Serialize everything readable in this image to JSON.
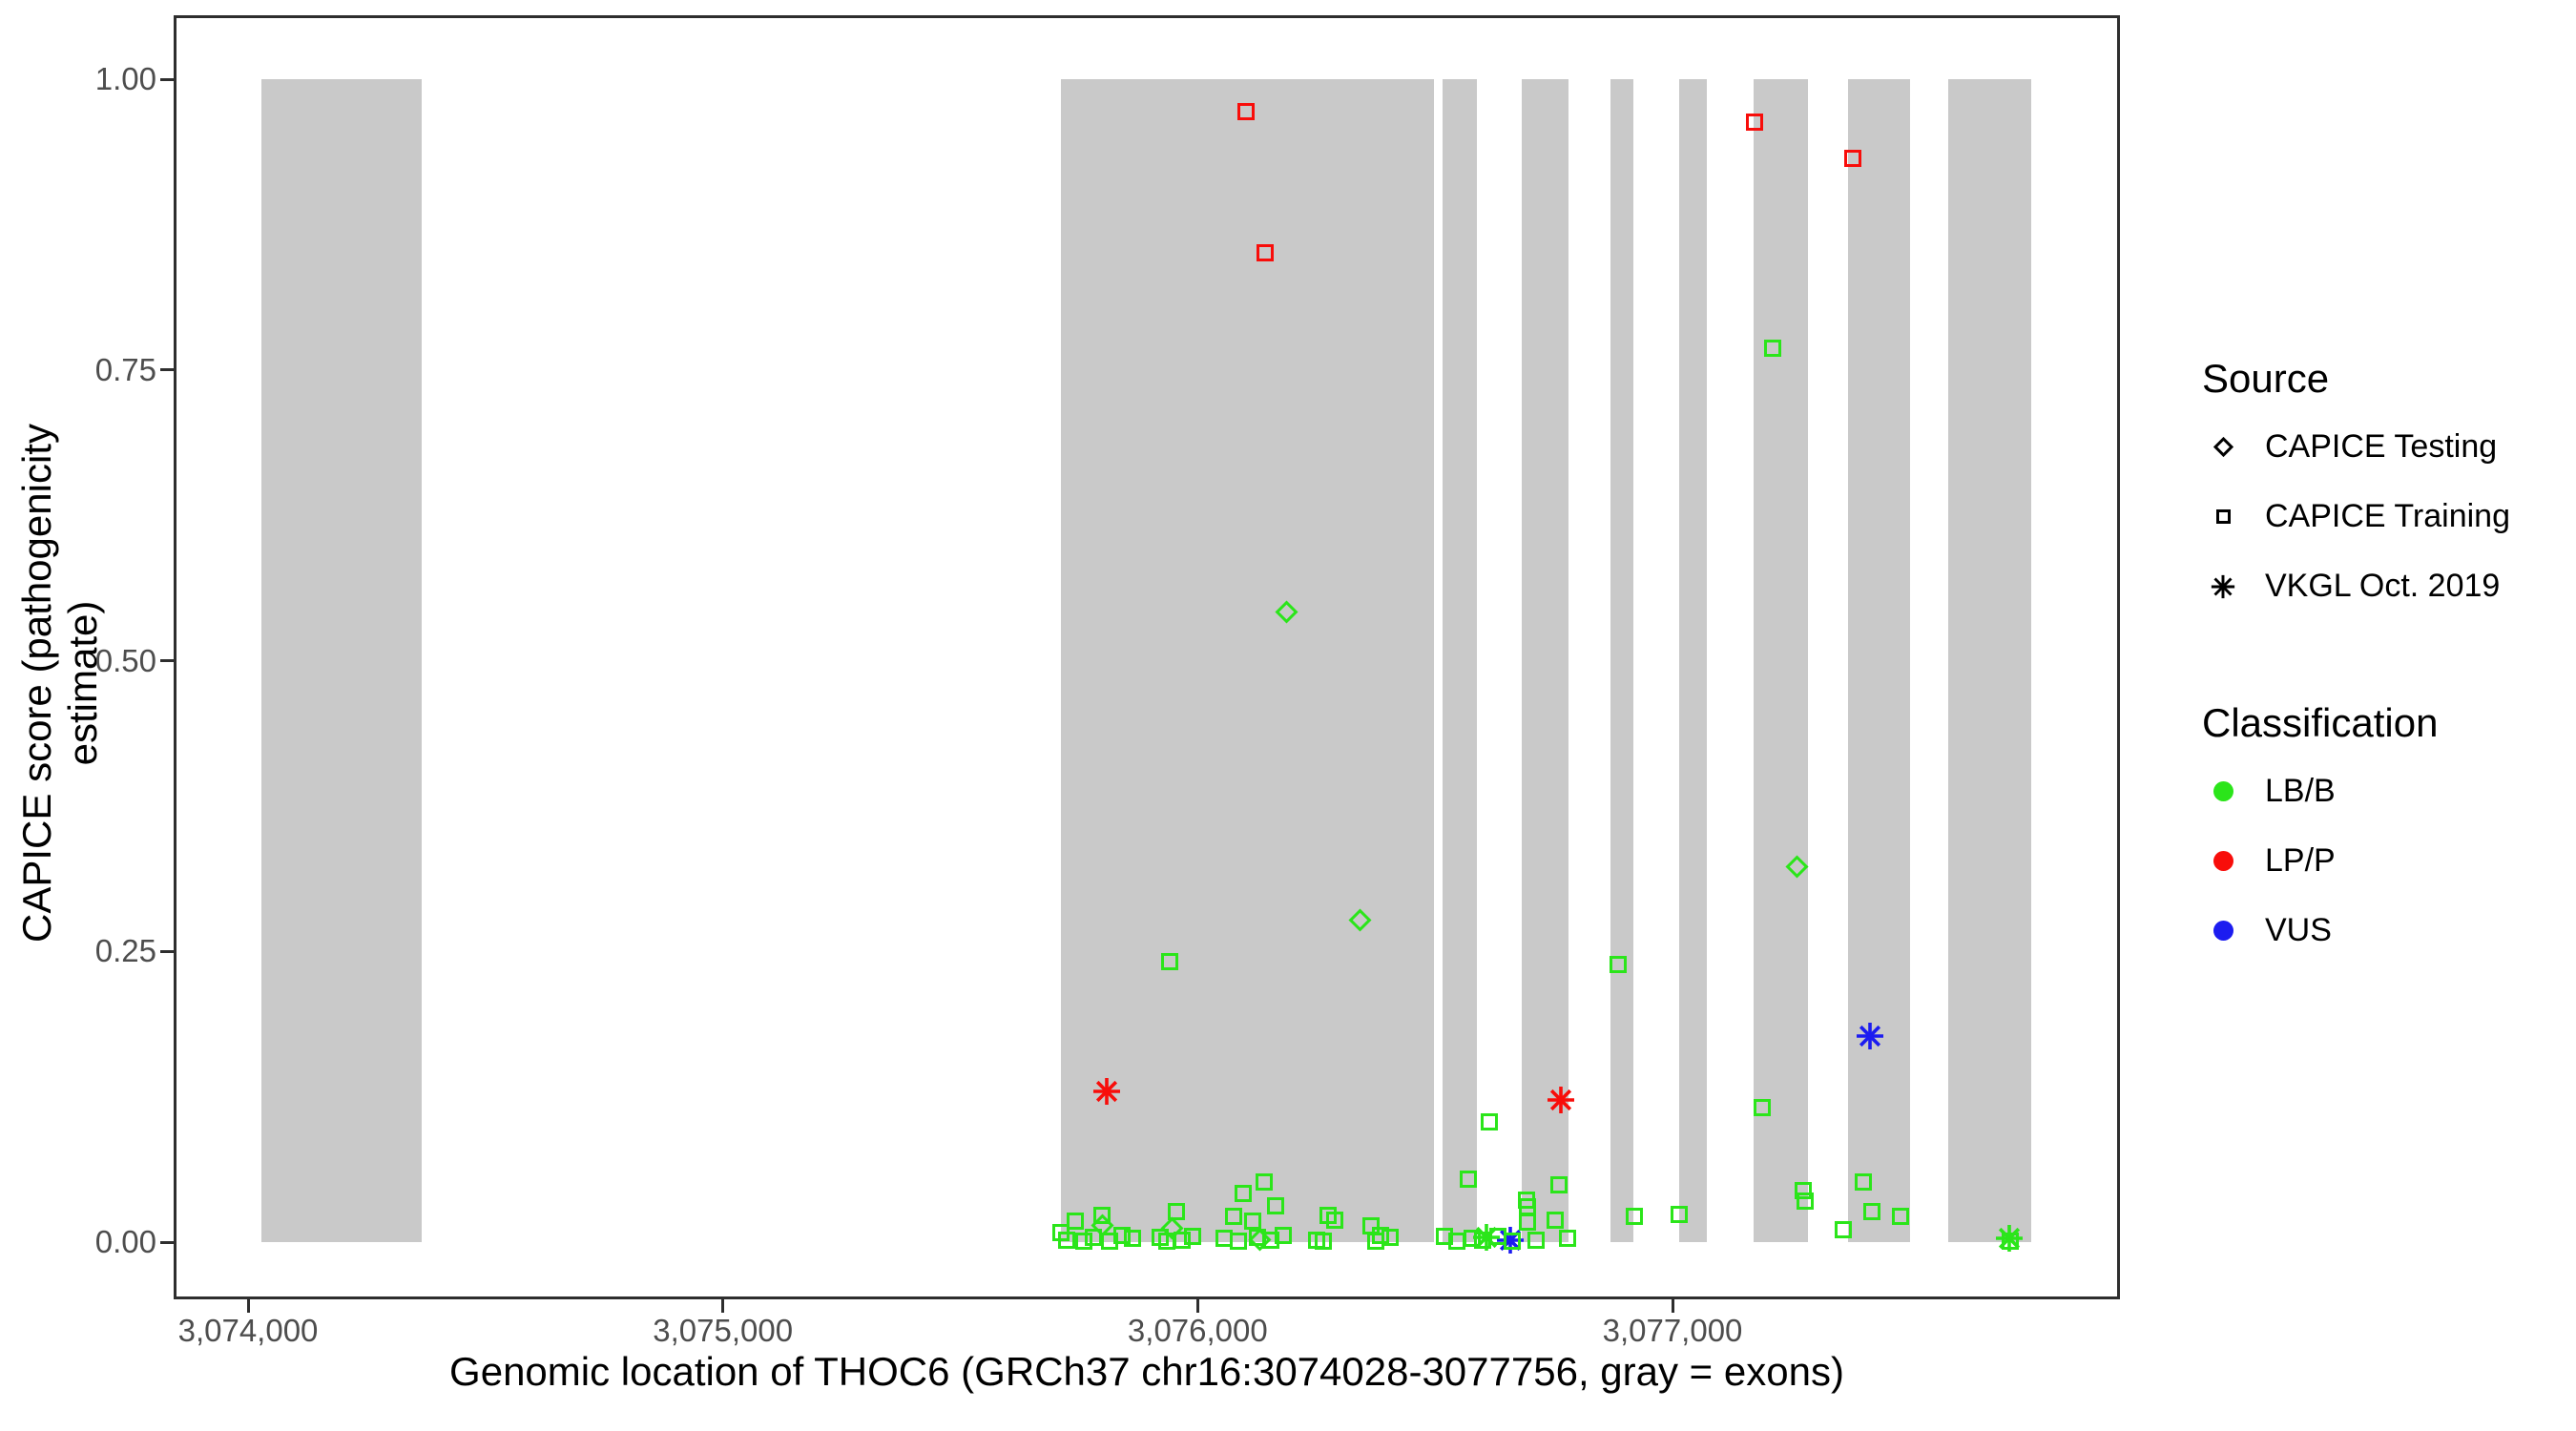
{
  "figure": {
    "y_axis": {
      "label": "CAPICE score (pathogenicity estimate)",
      "ticks": [
        {
          "value": 1.0,
          "label": "1.00"
        },
        {
          "value": 0.75,
          "label": "0.75"
        },
        {
          "value": 0.5,
          "label": "0.50"
        },
        {
          "value": 0.25,
          "label": "0.25"
        },
        {
          "value": 0.0,
          "label": "0.00"
        }
      ]
    },
    "x_axis": {
      "label": "Genomic location of THOC6 (GRCh37 chr16:3074028-3077756, gray = exons)",
      "ticks": [
        {
          "bp": 3074000,
          "label": "3,074,000"
        },
        {
          "bp": 3075000,
          "label": "3,075,000"
        },
        {
          "bp": 3076000,
          "label": "3,076,000"
        },
        {
          "bp": 3077000,
          "label": "3,077,000"
        }
      ]
    },
    "legend": {
      "source": {
        "title": "Source",
        "items": [
          {
            "shape": "diamond",
            "label": "CAPICE Testing"
          },
          {
            "shape": "square",
            "label": "CAPICE Training"
          },
          {
            "shape": "asterisk",
            "label": "VKGL Oct. 2019"
          }
        ]
      },
      "classification": {
        "title": "Classification",
        "items": [
          {
            "class": "LB/B",
            "label": "LB/B",
            "color": "#2be51a"
          },
          {
            "class": "LP/P",
            "label": "LP/P",
            "color": "#f80d0a"
          },
          {
            "class": "VUS",
            "label": "VUS",
            "color": "#1c1cf0"
          }
        ]
      }
    }
  },
  "chart_data": {
    "type": "scatter",
    "title": "",
    "xlabel": "Genomic location of THOC6 (GRCh37 chr16:3074028-3077756, gray = exons)",
    "ylabel": "CAPICE score (pathogenicity estimate)",
    "x_range_bp": [
      3073843,
      3077943
    ],
    "ylim": [
      -0.049,
      1.055
    ],
    "gene": {
      "name": "THOC6",
      "assembly": "GRCh37",
      "chrom": "chr16",
      "start": 3074028,
      "end": 3077756
    },
    "exon_color": "#c9c9c9",
    "colors": {
      "LB/B": "#2be51a",
      "LP/P": "#f80d0a",
      "VUS": "#1c1cf0"
    },
    "shape_to_source": {
      "diamond": "CAPICE Testing",
      "square": "CAPICE Training",
      "asterisk": "VKGL Oct. 2019"
    },
    "exons": [
      {
        "start": 3074028,
        "end": 3074365
      },
      {
        "start": 3075712,
        "end": 3076498
      },
      {
        "start": 3076516,
        "end": 3076588
      },
      {
        "start": 3076682,
        "end": 3076781
      },
      {
        "start": 3076870,
        "end": 3076917
      },
      {
        "start": 3077014,
        "end": 3077073
      },
      {
        "start": 3077171,
        "end": 3077285
      },
      {
        "start": 3077369,
        "end": 3077500
      },
      {
        "start": 3077580,
        "end": 3077756
      }
    ],
    "points": [
      {
        "bp": 3076102,
        "score": 0.972,
        "shape": "square",
        "class": "LP/P"
      },
      {
        "bp": 3076142,
        "score": 0.851,
        "shape": "square",
        "class": "LP/P"
      },
      {
        "bp": 3077172,
        "score": 0.963,
        "shape": "square",
        "class": "LP/P"
      },
      {
        "bp": 3077380,
        "score": 0.932,
        "shape": "square",
        "class": "LP/P"
      },
      {
        "bp": 3075809,
        "score": 0.13,
        "shape": "asterisk",
        "class": "LP/P"
      },
      {
        "bp": 3076765,
        "score": 0.122,
        "shape": "asterisk",
        "class": "LP/P"
      },
      {
        "bp": 3077416,
        "score": 0.177,
        "shape": "asterisk",
        "class": "VUS"
      },
      {
        "bp": 3076658,
        "score": 0.002,
        "shape": "asterisk",
        "class": "VUS"
      },
      {
        "bp": 3076188,
        "score": 0.542,
        "shape": "diamond",
        "class": "LB/B"
      },
      {
        "bp": 3076341,
        "score": 0.277,
        "shape": "diamond",
        "class": "LB/B"
      },
      {
        "bp": 3077262,
        "score": 0.323,
        "shape": "diamond",
        "class": "LB/B"
      },
      {
        "bp": 3075800,
        "score": 0.014,
        "shape": "diamond",
        "class": "LB/B"
      },
      {
        "bp": 3075946,
        "score": 0.012,
        "shape": "diamond",
        "class": "LB/B"
      },
      {
        "bp": 3076130,
        "score": 0.002,
        "shape": "diamond",
        "class": "LB/B"
      },
      {
        "bp": 3075942,
        "score": 0.241,
        "shape": "square",
        "class": "LB/B"
      },
      {
        "bp": 3076885,
        "score": 0.239,
        "shape": "square",
        "class": "LB/B"
      },
      {
        "bp": 3077210,
        "score": 0.769,
        "shape": "square",
        "class": "LB/B"
      },
      {
        "bp": 3077189,
        "score": 0.116,
        "shape": "square",
        "class": "LB/B"
      },
      {
        "bp": 3076614,
        "score": 0.103,
        "shape": "square",
        "class": "LB/B"
      },
      {
        "bp": 3076570,
        "score": 0.054,
        "shape": "square",
        "class": "LB/B"
      },
      {
        "bp": 3076761,
        "score": 0.049,
        "shape": "square",
        "class": "LB/B"
      },
      {
        "bp": 3076693,
        "score": 0.036,
        "shape": "square",
        "class": "LB/B"
      },
      {
        "bp": 3077402,
        "score": 0.052,
        "shape": "square",
        "class": "LB/B"
      },
      {
        "bp": 3077275,
        "score": 0.044,
        "shape": "square",
        "class": "LB/B"
      },
      {
        "bp": 3077015,
        "score": 0.024,
        "shape": "square",
        "class": "LB/B"
      },
      {
        "bp": 3076919,
        "score": 0.022,
        "shape": "square",
        "class": "LB/B"
      },
      {
        "bp": 3077280,
        "score": 0.035,
        "shape": "square",
        "class": "LB/B"
      },
      {
        "bp": 3077359,
        "score": 0.011,
        "shape": "square",
        "class": "LB/B"
      },
      {
        "bp": 3077420,
        "score": 0.026,
        "shape": "square",
        "class": "LB/B"
      },
      {
        "bp": 3077480,
        "score": 0.022,
        "shape": "square",
        "class": "LB/B"
      },
      {
        "bp": 3075742,
        "score": 0.018,
        "shape": "square",
        "class": "LB/B"
      },
      {
        "bp": 3075798,
        "score": 0.023,
        "shape": "square",
        "class": "LB/B"
      },
      {
        "bp": 3075712,
        "score": 0.008,
        "shape": "square",
        "class": "LB/B"
      },
      {
        "bp": 3075725,
        "score": 0.002,
        "shape": "square",
        "class": "LB/B"
      },
      {
        "bp": 3075760,
        "score": 0.001,
        "shape": "square",
        "class": "LB/B"
      },
      {
        "bp": 3075780,
        "score": 0.004,
        "shape": "square",
        "class": "LB/B"
      },
      {
        "bp": 3075815,
        "score": 0.001,
        "shape": "square",
        "class": "LB/B"
      },
      {
        "bp": 3075840,
        "score": 0.006,
        "shape": "square",
        "class": "LB/B"
      },
      {
        "bp": 3075862,
        "score": 0.003,
        "shape": "square",
        "class": "LB/B"
      },
      {
        "bp": 3075955,
        "score": 0.026,
        "shape": "square",
        "class": "LB/B"
      },
      {
        "bp": 3075920,
        "score": 0.004,
        "shape": "square",
        "class": "LB/B"
      },
      {
        "bp": 3075935,
        "score": 0.001,
        "shape": "square",
        "class": "LB/B"
      },
      {
        "bp": 3075968,
        "score": 0.002,
        "shape": "square",
        "class": "LB/B"
      },
      {
        "bp": 3075990,
        "score": 0.005,
        "shape": "square",
        "class": "LB/B"
      },
      {
        "bp": 3076095,
        "score": 0.042,
        "shape": "square",
        "class": "LB/B"
      },
      {
        "bp": 3076140,
        "score": 0.052,
        "shape": "square",
        "class": "LB/B"
      },
      {
        "bp": 3076165,
        "score": 0.031,
        "shape": "square",
        "class": "LB/B"
      },
      {
        "bp": 3076075,
        "score": 0.022,
        "shape": "square",
        "class": "LB/B"
      },
      {
        "bp": 3076115,
        "score": 0.018,
        "shape": "square",
        "class": "LB/B"
      },
      {
        "bp": 3076055,
        "score": 0.003,
        "shape": "square",
        "class": "LB/B"
      },
      {
        "bp": 3076085,
        "score": 0.001,
        "shape": "square",
        "class": "LB/B"
      },
      {
        "bp": 3076125,
        "score": 0.004,
        "shape": "square",
        "class": "LB/B"
      },
      {
        "bp": 3076155,
        "score": 0.002,
        "shape": "square",
        "class": "LB/B"
      },
      {
        "bp": 3076180,
        "score": 0.006,
        "shape": "square",
        "class": "LB/B"
      },
      {
        "bp": 3076275,
        "score": 0.023,
        "shape": "square",
        "class": "LB/B"
      },
      {
        "bp": 3076288,
        "score": 0.019,
        "shape": "square",
        "class": "LB/B"
      },
      {
        "bp": 3076250,
        "score": 0.002,
        "shape": "square",
        "class": "LB/B"
      },
      {
        "bp": 3076265,
        "score": 0.001,
        "shape": "square",
        "class": "LB/B"
      },
      {
        "bp": 3076365,
        "score": 0.014,
        "shape": "square",
        "class": "LB/B"
      },
      {
        "bp": 3076385,
        "score": 0.006,
        "shape": "square",
        "class": "LB/B"
      },
      {
        "bp": 3076405,
        "score": 0.004,
        "shape": "square",
        "class": "LB/B"
      },
      {
        "bp": 3076375,
        "score": 0.001,
        "shape": "square",
        "class": "LB/B"
      },
      {
        "bp": 3076608,
        "score": 0.004,
        "shape": "asterisk",
        "class": "LB/B"
      },
      {
        "bp": 3076520,
        "score": 0.005,
        "shape": "square",
        "class": "LB/B"
      },
      {
        "bp": 3076545,
        "score": 0.001,
        "shape": "square",
        "class": "LB/B"
      },
      {
        "bp": 3076578,
        "score": 0.003,
        "shape": "square",
        "class": "LB/B"
      },
      {
        "bp": 3076695,
        "score": 0.03,
        "shape": "square",
        "class": "LB/B"
      },
      {
        "bp": 3076695,
        "score": 0.017,
        "shape": "square",
        "class": "LB/B"
      },
      {
        "bp": 3076752,
        "score": 0.019,
        "shape": "square",
        "class": "LB/B"
      },
      {
        "bp": 3076779,
        "score": 0.003,
        "shape": "square",
        "class": "LB/B"
      },
      {
        "bp": 3076600,
        "score": 0.002,
        "shape": "square",
        "class": "LB/B"
      },
      {
        "bp": 3076632,
        "score": 0.005,
        "shape": "square",
        "class": "LB/B"
      },
      {
        "bp": 3076662,
        "score": 0.001,
        "shape": "square",
        "class": "LB/B"
      },
      {
        "bp": 3076712,
        "score": 0.002,
        "shape": "square",
        "class": "LB/B"
      },
      {
        "bp": 3077712,
        "score": 0.001,
        "shape": "square",
        "class": "LB/B"
      },
      {
        "bp": 3077710,
        "score": 0.003,
        "shape": "asterisk",
        "class": "LB/B"
      }
    ]
  }
}
